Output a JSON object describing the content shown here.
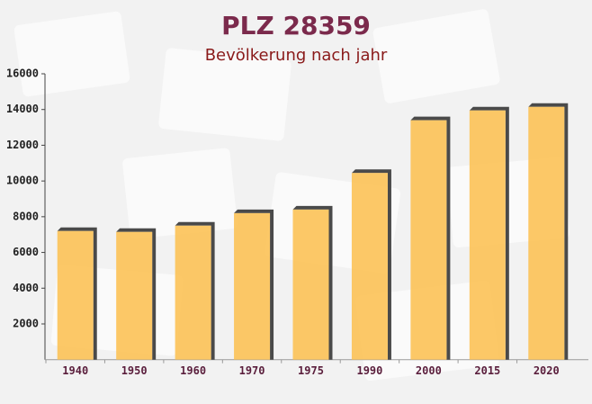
{
  "chart_data": {
    "type": "bar",
    "title": "PLZ 28359",
    "subtitle": "Bevölkerung nach jahr",
    "categories": [
      "1940",
      "1950",
      "1960",
      "1970",
      "1975",
      "1990",
      "2000",
      "2015",
      "2020"
    ],
    "values": [
      7200,
      7150,
      7500,
      8200,
      8400,
      10450,
      13400,
      13950,
      14150
    ],
    "color": "#fcc35a",
    "ylim": [
      0,
      16000
    ],
    "yticks": [
      2000,
      4000,
      6000,
      8000,
      10000,
      12000,
      14000,
      16000
    ],
    "grid": false
  }
}
